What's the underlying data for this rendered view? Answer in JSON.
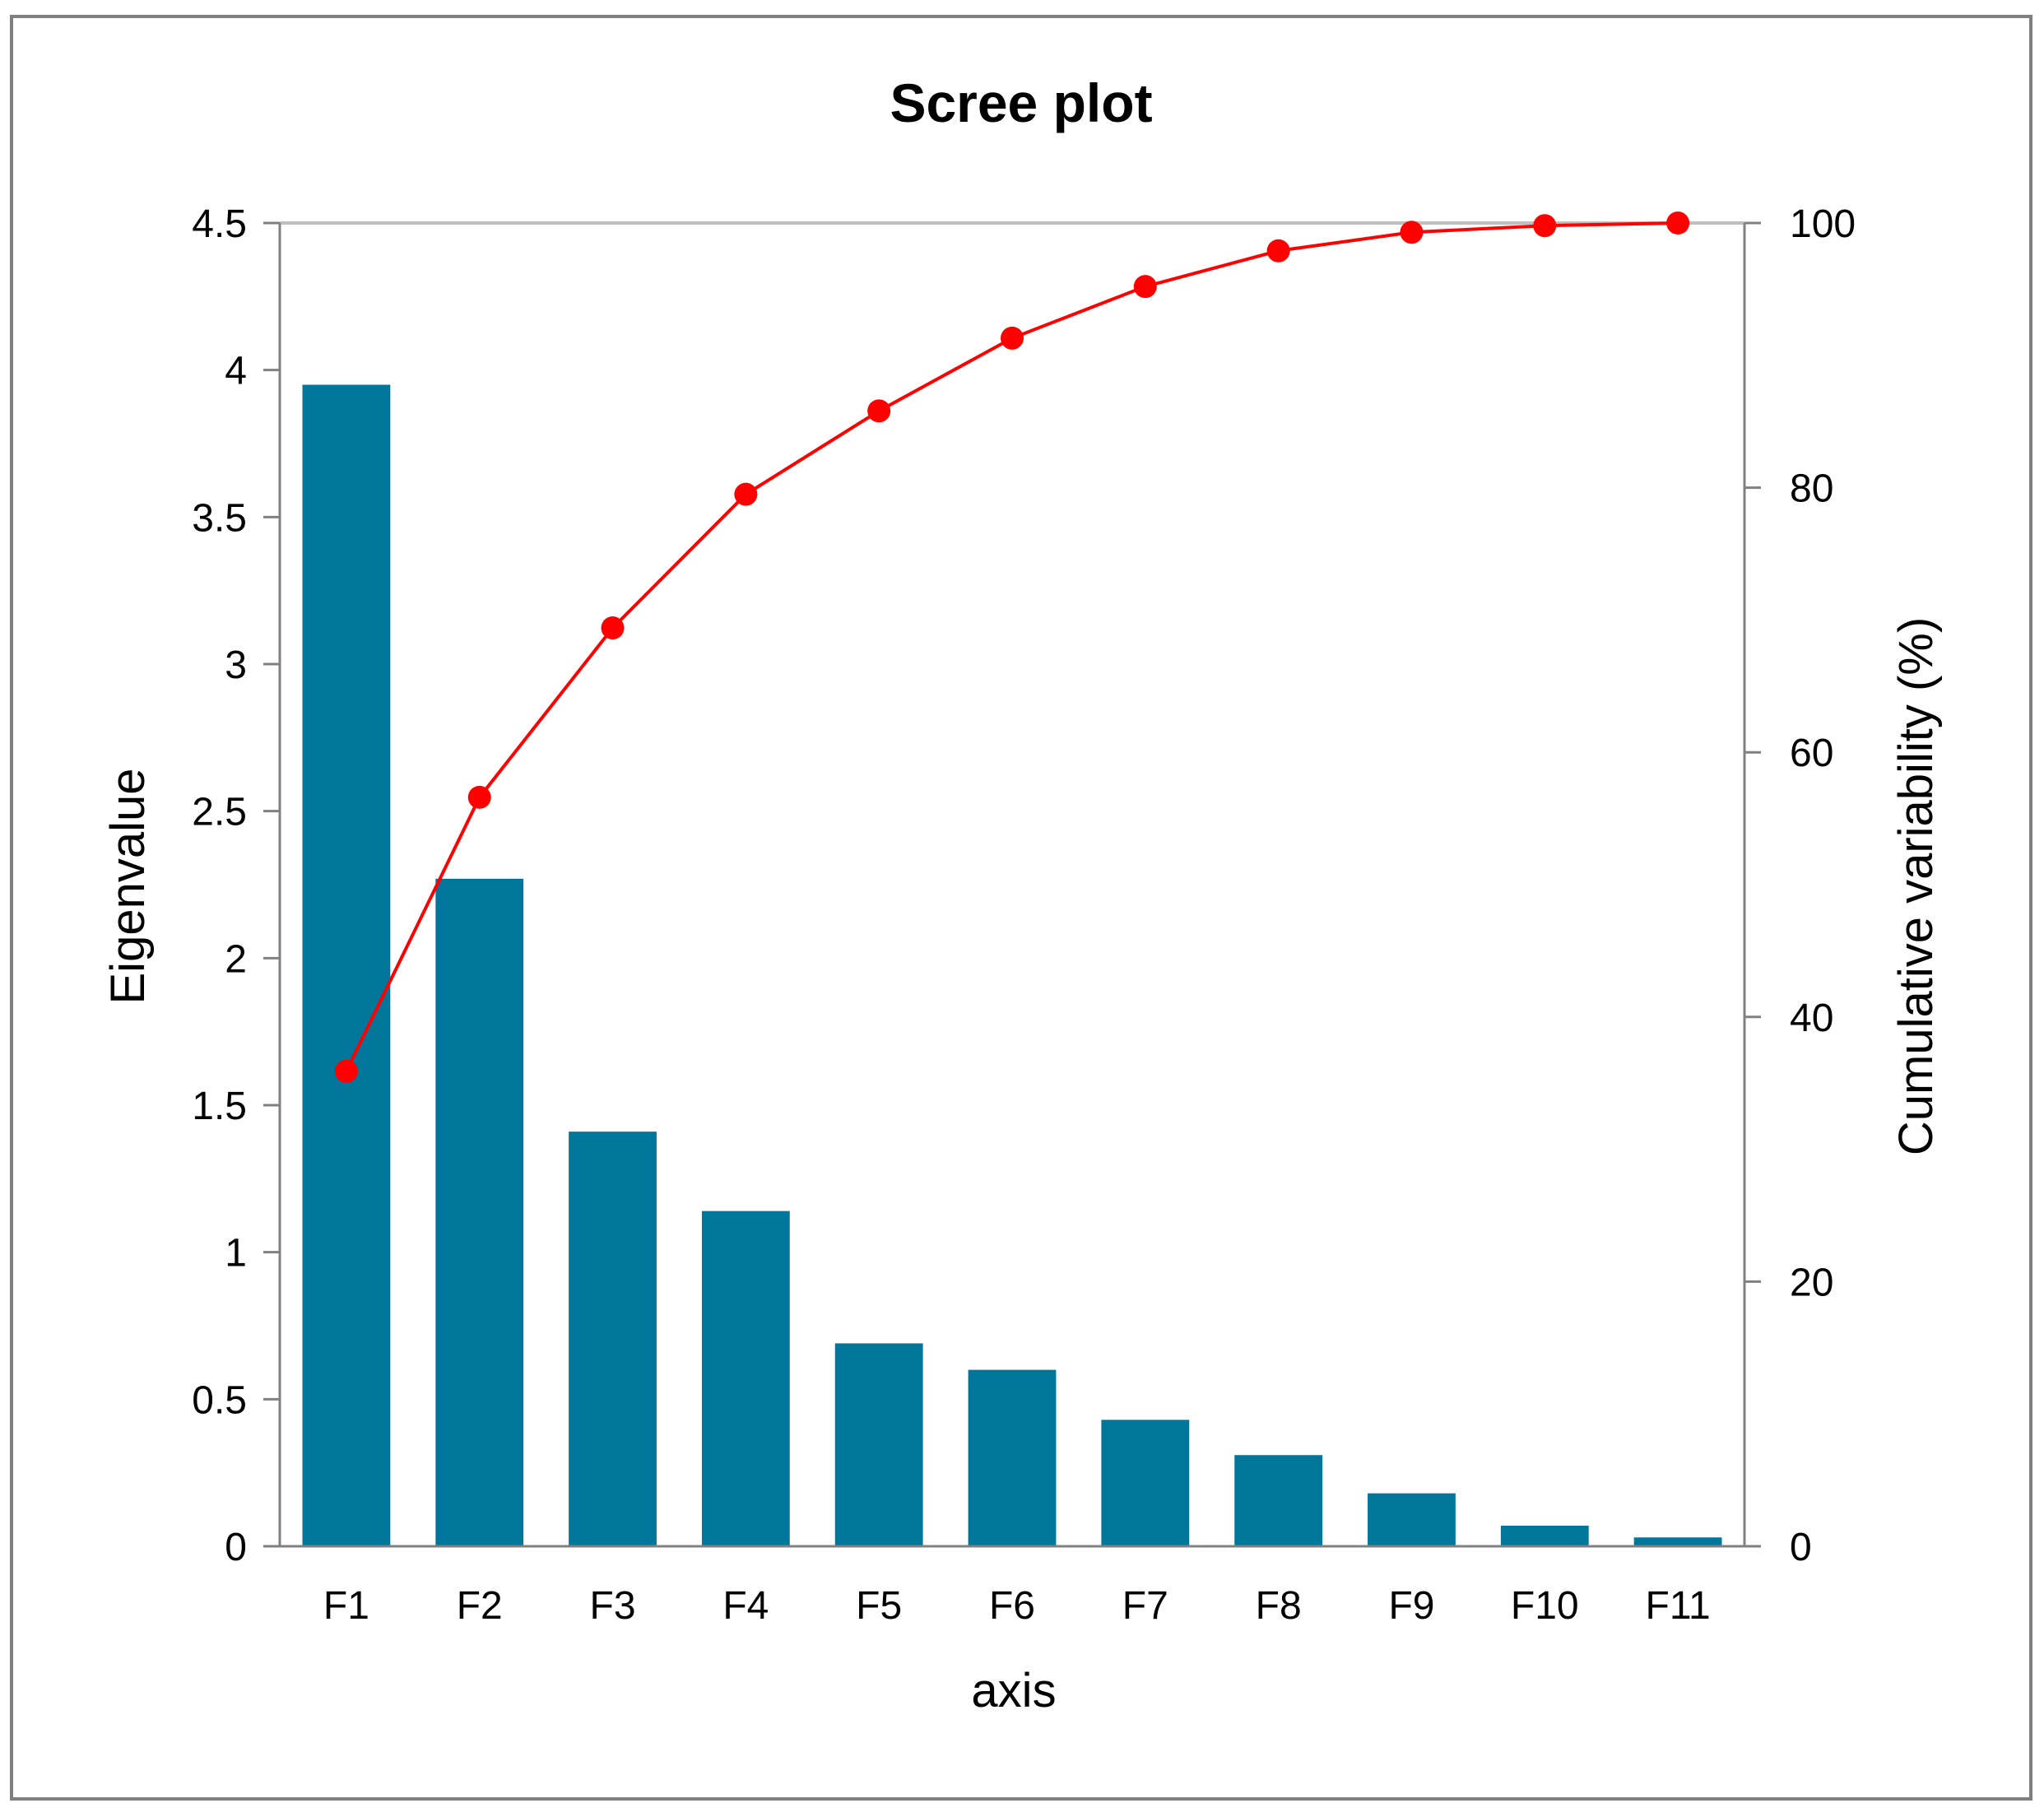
{
  "chart_data": {
    "type": "bar",
    "title": "Scree plot",
    "xlabel": "axis",
    "ylabel": "Eigenvalue",
    "y2label": "Cumulative variability (%)",
    "categories": [
      "F1",
      "F2",
      "F3",
      "F4",
      "F5",
      "F6",
      "F7",
      "F8",
      "F9",
      "F10",
      "F11"
    ],
    "series": [
      {
        "type": "bar",
        "axis": "left",
        "values": [
          3.95,
          2.27,
          1.41,
          1.14,
          0.69,
          0.6,
          0.43,
          0.31,
          0.18,
          0.07,
          0.03
        ]
      },
      {
        "type": "line",
        "axis": "right",
        "values": [
          35.9,
          56.6,
          69.4,
          79.5,
          85.8,
          91.3,
          95.2,
          97.9,
          99.3,
          99.8,
          100.0
        ]
      }
    ],
    "ylim": [
      0,
      4.5
    ],
    "yticks": [
      "0",
      "0.5",
      "1",
      "1.5",
      "2",
      "2.5",
      "3",
      "3.5",
      "4",
      "4.5"
    ],
    "y2lim": [
      0,
      100
    ],
    "y2ticks": [
      "0",
      "20",
      "40",
      "60",
      "80",
      "100"
    ],
    "grid": false,
    "legend": "none",
    "colors": {
      "bar": "#00769a",
      "line": "#ff0000",
      "axis": "#808080",
      "frame": "#808080",
      "topline": "#bfbfbf"
    }
  }
}
